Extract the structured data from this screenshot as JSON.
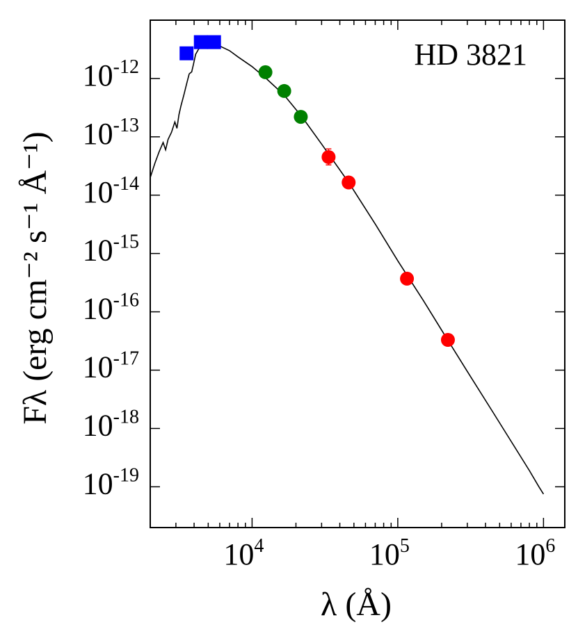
{
  "chart_data": {
    "type": "scatter",
    "title": "HD 3821",
    "xlabel": "λ (Å)",
    "ylabel": "Fλ (erg cm⁻² s⁻¹ Å⁻¹)",
    "xscale": "log",
    "yscale": "log",
    "xlim": [
      2000,
      1400000
    ],
    "ylim": [
      2e-20,
      1e-11
    ],
    "x_ticks": [
      {
        "value": 10000,
        "base": "10",
        "exp": "4"
      },
      {
        "value": 100000,
        "base": "10",
        "exp": "5"
      },
      {
        "value": 1000000,
        "base": "10",
        "exp": "6"
      }
    ],
    "y_ticks": [
      {
        "value": 1e-12,
        "base": "10",
        "exp": "-12"
      },
      {
        "value": 1e-13,
        "base": "10",
        "exp": "-13"
      },
      {
        "value": 1e-14,
        "base": "10",
        "exp": "-14"
      },
      {
        "value": 1e-15,
        "base": "10",
        "exp": "-15"
      },
      {
        "value": 1e-16,
        "base": "10",
        "exp": "-16"
      },
      {
        "value": 1e-17,
        "base": "10",
        "exp": "-17"
      },
      {
        "value": 1e-18,
        "base": "10",
        "exp": "-18"
      },
      {
        "value": 1e-19,
        "base": "10",
        "exp": "-19"
      }
    ],
    "series": [
      {
        "marker": "square",
        "color": "#0000ff",
        "points": [
          [
            3550,
            2.7e-12
          ],
          [
            4450,
            4.2e-12
          ],
          [
            5480,
            4.2e-12
          ]
        ]
      },
      {
        "marker": "circle",
        "color": "#008000",
        "points": [
          [
            12350,
            1.28e-12
          ],
          [
            16620,
            6.1e-13
          ],
          [
            21590,
            2.2e-13
          ]
        ]
      },
      {
        "marker": "circle",
        "color": "#ff0000",
        "points": [
          [
            33500,
            4.5e-14
          ],
          [
            46000,
            1.65e-14
          ],
          [
            115600,
            3.7e-16
          ],
          [
            220800,
            3.3e-17
          ]
        ],
        "error_bars": [
          [
            33500,
            3.3e-14,
            6.2e-14
          ]
        ]
      }
    ],
    "model_sed": {
      "color": "#000000",
      "points": [
        [
          2000,
          2e-14
        ],
        [
          2150,
          3.5e-14
        ],
        [
          2300,
          5.5e-14
        ],
        [
          2450,
          8e-14
        ],
        [
          2550,
          6e-14
        ],
        [
          2650,
          9e-14
        ],
        [
          2800,
          1.2e-13
        ],
        [
          2950,
          1.8e-13
        ],
        [
          3050,
          1.4e-13
        ],
        [
          3150,
          2.4e-13
        ],
        [
          3250,
          3.4e-13
        ],
        [
          3400,
          5.2e-13
        ],
        [
          3550,
          8e-13
        ],
        [
          3700,
          1.2e-12
        ],
        [
          3850,
          1.3e-12
        ],
        [
          3950,
          1.7e-12
        ],
        [
          4100,
          2.6e-12
        ],
        [
          4300,
          3.2e-12
        ],
        [
          4600,
          3.6e-12
        ],
        [
          5000,
          3.85e-12
        ],
        [
          5400,
          3.85e-12
        ],
        [
          6000,
          3.6e-12
        ],
        [
          7000,
          3e-12
        ],
        [
          8000,
          2.35e-12
        ],
        [
          10000,
          1.6e-12
        ],
        [
          12500,
          1e-12
        ],
        [
          16600,
          5.2e-13
        ],
        [
          22000,
          2.2e-13
        ],
        [
          30000,
          7.5e-14
        ],
        [
          46000,
          1.65e-14
        ],
        [
          70000,
          3.2e-15
        ],
        [
          100000,
          7.5e-16
        ],
        [
          150000,
          1.55e-16
        ],
        [
          220000,
          3.3e-17
        ],
        [
          300000,
          9.5e-18
        ],
        [
          450000,
          1.9e-18
        ],
        [
          600000,
          6e-19
        ],
        [
          800000,
          1.9e-19
        ],
        [
          930000,
          1e-19
        ],
        [
          1000000,
          7.5e-20
        ]
      ]
    }
  }
}
